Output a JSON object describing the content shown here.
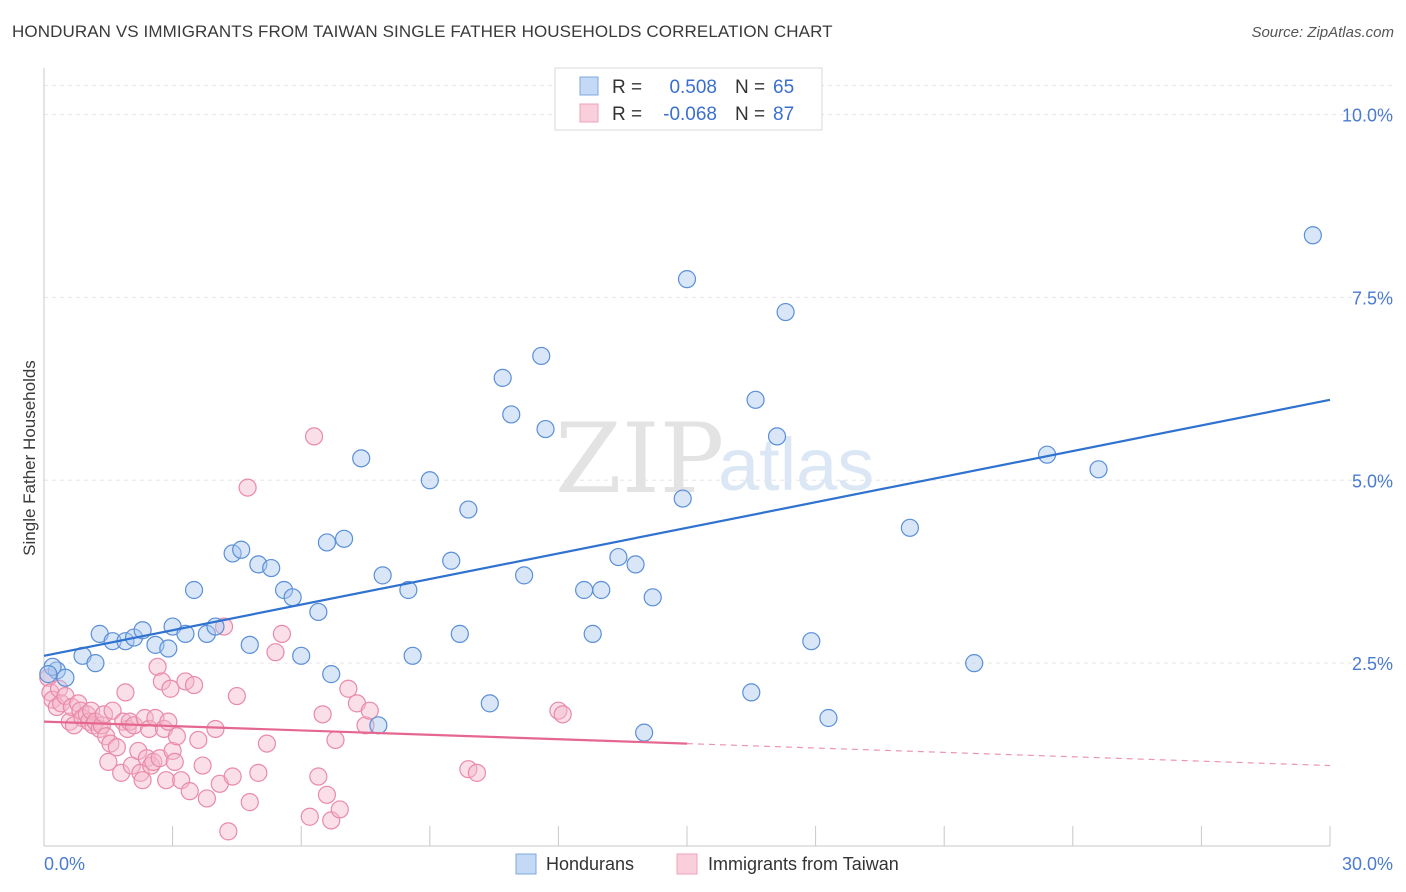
{
  "title": "HONDURAN VS IMMIGRANTS FROM TAIWAN SINGLE FATHER HOUSEHOLDS CORRELATION CHART",
  "source": "Source: ZipAtlas.com",
  "watermark": {
    "zip": "ZIP",
    "atlas": "atlas"
  },
  "legend": {
    "rows": [
      {
        "r_label": "R =",
        "r_value": "0.508",
        "n_label": "N =",
        "n_value": "65",
        "color": "#a9c8f0"
      },
      {
        "r_label": "R =",
        "r_value": "-0.068",
        "n_label": "N =",
        "n_value": "87",
        "color": "#f5b8cb"
      }
    ]
  },
  "bottom_legend": [
    {
      "label": "Hondurans",
      "color": "#a9c8f0"
    },
    {
      "label": "Immigrants from Taiwan",
      "color": "#f5b8cb"
    }
  ],
  "chart_data": {
    "type": "scatter",
    "title": "HONDURAN VS IMMIGRANTS FROM TAIWAN SINGLE FATHER HOUSEHOLDS CORRELATION CHART",
    "ylabel": "Single Father Households",
    "xlabel": "",
    "xlim": [
      0,
      30
    ],
    "ylim": [
      0,
      10.5
    ],
    "x_tick_labels": [
      "0.0%",
      "30.0%"
    ],
    "y_ticks": [
      2.5,
      5.0,
      7.5,
      10.0
    ],
    "y_tick_labels": [
      "2.5%",
      "5.0%",
      "7.5%",
      "10.0%"
    ],
    "grid": true,
    "series": [
      {
        "name": "Hondurans",
        "color": "#a9c8f0",
        "stroke": "#5b8fd8",
        "trend": {
          "x": [
            0,
            30
          ],
          "y": [
            2.6,
            6.1
          ],
          "color": "#2f72cf",
          "dashed_from": null
        },
        "points": [
          [
            0.3,
            2.4
          ],
          [
            0.5,
            2.3
          ],
          [
            0.9,
            2.6
          ],
          [
            1.2,
            2.5
          ],
          [
            1.3,
            2.9
          ],
          [
            1.6,
            2.8
          ],
          [
            1.9,
            2.8
          ],
          [
            2.1,
            2.85
          ],
          [
            2.3,
            2.95
          ],
          [
            2.6,
            2.75
          ],
          [
            2.9,
            2.7
          ],
          [
            3.0,
            3.0
          ],
          [
            3.3,
            2.9
          ],
          [
            3.5,
            3.5
          ],
          [
            3.8,
            2.9
          ],
          [
            4.0,
            3.0
          ],
          [
            4.4,
            4.0
          ],
          [
            4.6,
            4.05
          ],
          [
            4.8,
            2.75
          ],
          [
            5.0,
            3.85
          ],
          [
            5.3,
            3.8
          ],
          [
            5.6,
            3.5
          ],
          [
            5.8,
            3.4
          ],
          [
            6.0,
            2.6
          ],
          [
            6.4,
            3.2
          ],
          [
            6.6,
            4.15
          ],
          [
            6.7,
            2.35
          ],
          [
            7.0,
            4.2
          ],
          [
            7.4,
            5.3
          ],
          [
            7.8,
            1.65
          ],
          [
            7.9,
            3.7
          ],
          [
            8.5,
            3.5
          ],
          [
            8.6,
            2.6
          ],
          [
            9.0,
            5.0
          ],
          [
            9.5,
            3.9
          ],
          [
            9.7,
            2.9
          ],
          [
            9.9,
            4.6
          ],
          [
            10.4,
            1.95
          ],
          [
            10.7,
            6.4
          ],
          [
            10.9,
            5.9
          ],
          [
            11.2,
            3.7
          ],
          [
            11.6,
            6.7
          ],
          [
            11.7,
            5.7
          ],
          [
            12.6,
            3.5
          ],
          [
            12.8,
            2.9
          ],
          [
            13.0,
            3.5
          ],
          [
            13.4,
            3.95
          ],
          [
            13.8,
            3.85
          ],
          [
            14.0,
            1.55
          ],
          [
            14.2,
            3.4
          ],
          [
            14.9,
            4.75
          ],
          [
            15.0,
            7.75
          ],
          [
            16.5,
            2.1
          ],
          [
            16.6,
            6.1
          ],
          [
            17.1,
            5.6
          ],
          [
            17.3,
            7.3
          ],
          [
            17.9,
            2.8
          ],
          [
            18.3,
            1.75
          ],
          [
            20.2,
            4.35
          ],
          [
            21.7,
            2.5
          ],
          [
            23.4,
            5.35
          ],
          [
            24.6,
            5.15
          ],
          [
            29.6,
            8.35
          ],
          [
            0.2,
            2.45
          ],
          [
            0.1,
            2.35
          ]
        ]
      },
      {
        "name": "Immigrants from Taiwan",
        "color": "#f5b8cb",
        "stroke": "#e98aa8",
        "trend": {
          "x": [
            0,
            15,
            30
          ],
          "y": [
            1.7,
            1.4,
            1.1
          ],
          "color": "#e56790",
          "dashed_from": 15
        },
        "points": [
          [
            0.1,
            2.3
          ],
          [
            0.15,
            2.1
          ],
          [
            0.2,
            2.0
          ],
          [
            0.3,
            1.9
          ],
          [
            0.35,
            2.15
          ],
          [
            0.4,
            1.95
          ],
          [
            0.5,
            2.05
          ],
          [
            0.6,
            1.7
          ],
          [
            0.65,
            1.9
          ],
          [
            0.7,
            1.65
          ],
          [
            0.8,
            1.95
          ],
          [
            0.85,
            1.85
          ],
          [
            0.9,
            1.75
          ],
          [
            1.0,
            1.8
          ],
          [
            1.05,
            1.7
          ],
          [
            1.1,
            1.85
          ],
          [
            1.15,
            1.65
          ],
          [
            1.2,
            1.7
          ],
          [
            1.3,
            1.6
          ],
          [
            1.35,
            1.65
          ],
          [
            1.4,
            1.8
          ],
          [
            1.45,
            1.5
          ],
          [
            1.5,
            1.15
          ],
          [
            1.55,
            1.4
          ],
          [
            1.6,
            1.85
          ],
          [
            1.7,
            1.35
          ],
          [
            1.8,
            1.0
          ],
          [
            1.85,
            1.7
          ],
          [
            1.9,
            2.1
          ],
          [
            1.95,
            1.6
          ],
          [
            2.0,
            1.7
          ],
          [
            2.05,
            1.1
          ],
          [
            2.1,
            1.65
          ],
          [
            2.2,
            1.3
          ],
          [
            2.25,
            1.0
          ],
          [
            2.3,
            0.9
          ],
          [
            2.35,
            1.75
          ],
          [
            2.4,
            1.2
          ],
          [
            2.45,
            1.6
          ],
          [
            2.5,
            1.1
          ],
          [
            2.55,
            1.15
          ],
          [
            2.6,
            1.75
          ],
          [
            2.65,
            2.45
          ],
          [
            2.7,
            1.2
          ],
          [
            2.75,
            2.25
          ],
          [
            2.8,
            1.6
          ],
          [
            2.85,
            0.9
          ],
          [
            2.9,
            1.7
          ],
          [
            2.95,
            2.15
          ],
          [
            3.0,
            1.3
          ],
          [
            3.05,
            1.15
          ],
          [
            3.1,
            1.5
          ],
          [
            3.2,
            0.9
          ],
          [
            3.3,
            2.25
          ],
          [
            3.4,
            0.75
          ],
          [
            3.5,
            2.2
          ],
          [
            3.6,
            1.45
          ],
          [
            3.7,
            1.1
          ],
          [
            3.8,
            0.65
          ],
          [
            4.0,
            1.6
          ],
          [
            4.1,
            0.85
          ],
          [
            4.2,
            3.0
          ],
          [
            4.3,
            0.2
          ],
          [
            4.4,
            0.95
          ],
          [
            4.5,
            2.05
          ],
          [
            4.75,
            4.9
          ],
          [
            4.8,
            0.6
          ],
          [
            5.0,
            1.0
          ],
          [
            5.2,
            1.4
          ],
          [
            5.4,
            2.65
          ],
          [
            5.55,
            2.9
          ],
          [
            6.2,
            0.4
          ],
          [
            6.3,
            5.6
          ],
          [
            6.4,
            0.95
          ],
          [
            6.5,
            1.8
          ],
          [
            6.6,
            0.7
          ],
          [
            6.7,
            0.35
          ],
          [
            6.8,
            1.45
          ],
          [
            6.9,
            0.5
          ],
          [
            7.1,
            2.15
          ],
          [
            7.3,
            1.95
          ],
          [
            7.5,
            1.65
          ],
          [
            7.6,
            1.85
          ],
          [
            9.9,
            1.05
          ],
          [
            10.1,
            1.0
          ],
          [
            12.0,
            1.85
          ],
          [
            12.1,
            1.8
          ]
        ]
      }
    ]
  }
}
